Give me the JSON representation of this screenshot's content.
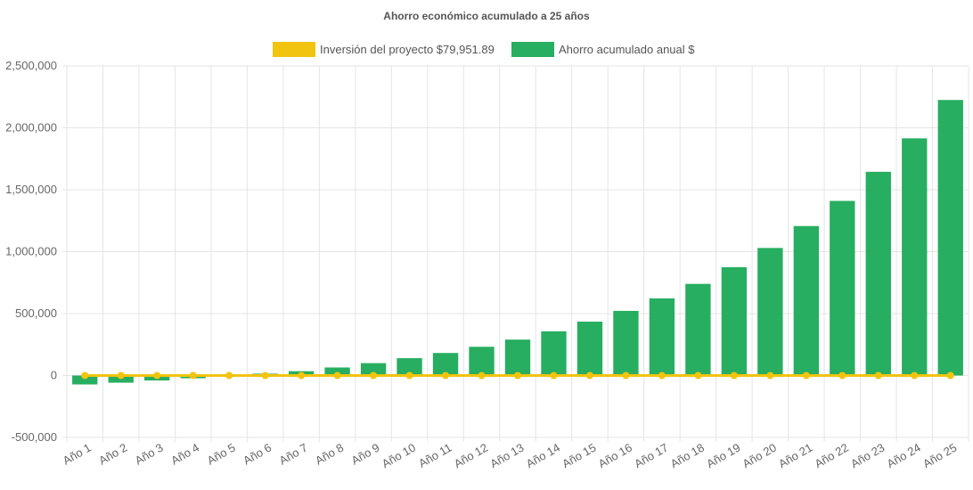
{
  "chart_data": {
    "type": "bar",
    "title": "Ahorro económico acumulado a 25 años",
    "categories": [
      "Año 1",
      "Año 2",
      "Año 3",
      "Año 4",
      "Año 5",
      "Año 6",
      "Año 7",
      "Año 8",
      "Año 9",
      "Año 10",
      "Año 11",
      "Año 12",
      "Año 13",
      "Año 14",
      "Año 15",
      "Año 16",
      "Año 17",
      "Año 18",
      "Año 19",
      "Año 20",
      "Año 21",
      "Año 22",
      "Año 23",
      "Año 24",
      "Año 25"
    ],
    "series": [
      {
        "name": "Inversión del proyecto $79,951.89",
        "type": "line",
        "color": "#f1c40f",
        "values": [
          0,
          0,
          0,
          0,
          0,
          0,
          0,
          0,
          0,
          0,
          0,
          0,
          0,
          0,
          0,
          0,
          0,
          0,
          0,
          0,
          0,
          0,
          0,
          0,
          0
        ]
      },
      {
        "name": "Ahorro acumulado anual $",
        "type": "bar",
        "color": "#27ae60",
        "values": [
          -72000,
          -58000,
          -40000,
          -22000,
          -4000,
          15000,
          35000,
          65000,
          100000,
          140000,
          182000,
          232000,
          290000,
          357000,
          435000,
          522000,
          623000,
          740000,
          875000,
          1030000,
          1207000,
          1410000,
          1645000,
          1915000,
          2225000
        ]
      }
    ],
    "ylim": [
      -500000,
      2500000
    ],
    "yticks": [
      "2,500,000",
      "2,000,000",
      "1,500,000",
      "1,000,000",
      "500,000",
      "0",
      "-500,000"
    ],
    "ytick_values": [
      2500000,
      2000000,
      1500000,
      1000000,
      500000,
      0,
      -500000
    ],
    "legend_position": "top-center",
    "grid": true
  }
}
